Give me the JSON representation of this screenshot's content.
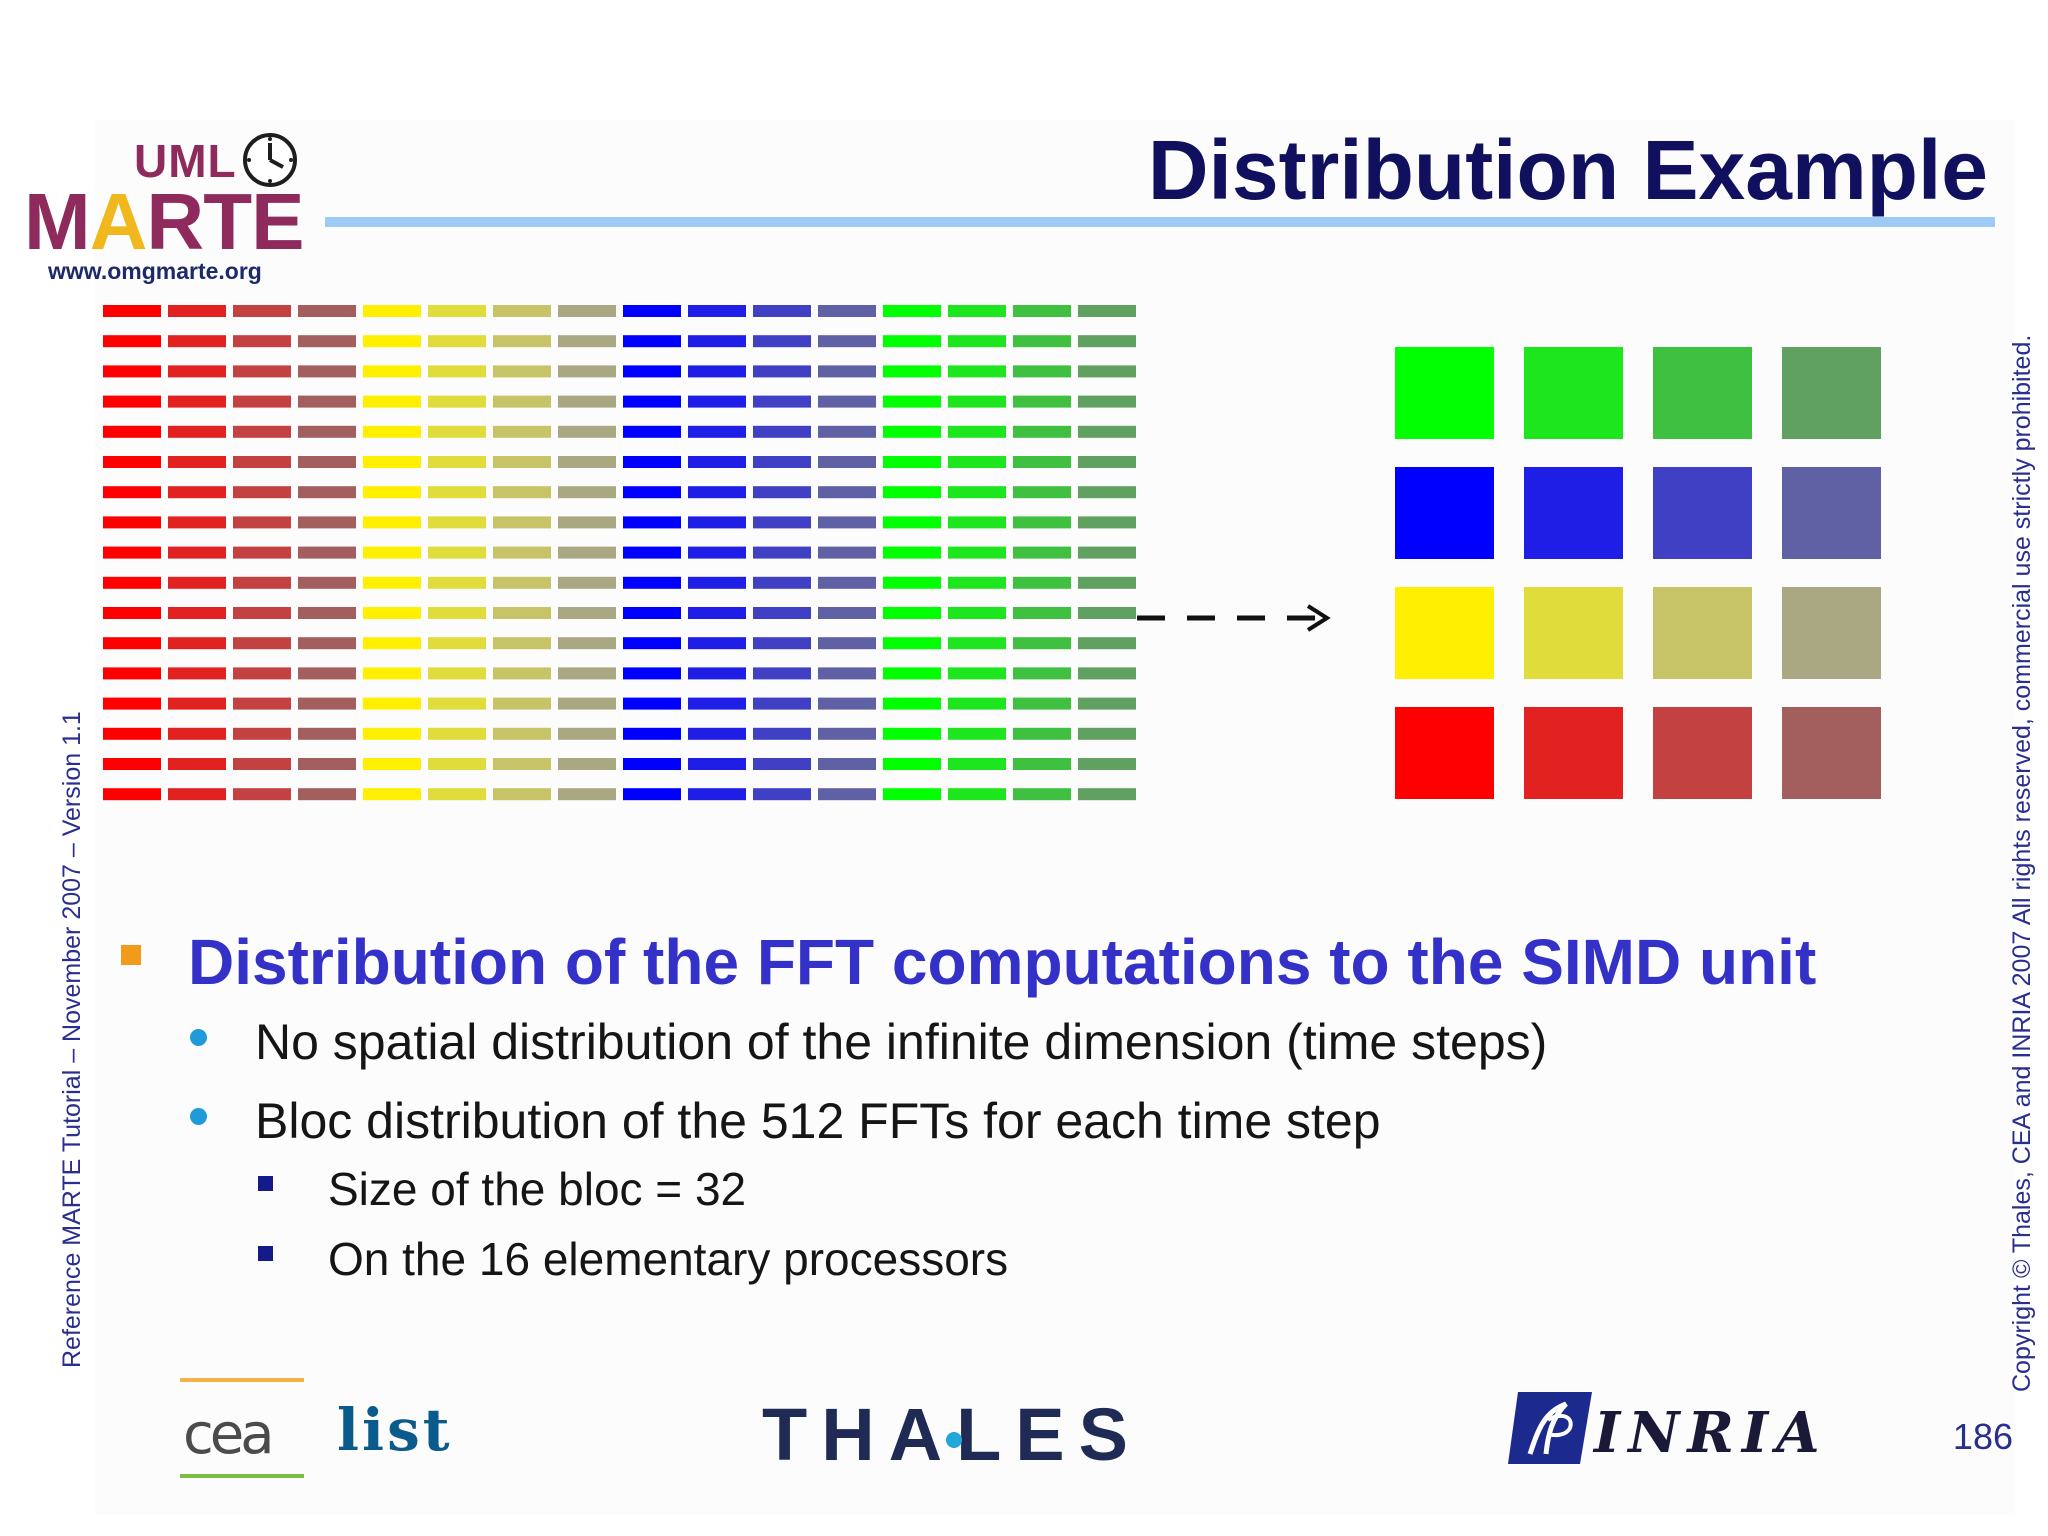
{
  "header": {
    "logo_uml": "UML",
    "logo_marte_m": "M",
    "logo_marte_a": "A",
    "logo_marte_rest": "RTE",
    "logo_url": "www.omgmarte.org",
    "title": "Distribution Example"
  },
  "figure": {
    "left_grid": {
      "rows": 17,
      "columns_per_group": 4,
      "groups": [
        {
          "name": "red",
          "colors": [
            "#ff0000",
            "#e22121",
            "#c44141",
            "#a35e5e"
          ]
        },
        {
          "name": "yellow",
          "colors": [
            "#ffef00",
            "#e0dc3b",
            "#c7c367",
            "#aaa882"
          ]
        },
        {
          "name": "blue",
          "colors": [
            "#0000ff",
            "#1e1ee6",
            "#4040c4",
            "#6060a4"
          ]
        },
        {
          "name": "green",
          "colors": [
            "#00ff00",
            "#1ee61e",
            "#40c040",
            "#60a060"
          ]
        }
      ]
    },
    "right_grid": {
      "rows": [
        {
          "name": "green",
          "colors": [
            "#00ff00",
            "#1ee61e",
            "#40c040",
            "#60a060"
          ]
        },
        {
          "name": "blue",
          "colors": [
            "#0000ff",
            "#1e1ee6",
            "#4040c4",
            "#6060a4"
          ]
        },
        {
          "name": "yellow",
          "colors": [
            "#ffef00",
            "#e0dc3b",
            "#c7c367",
            "#aaa882"
          ]
        },
        {
          "name": "red",
          "colors": [
            "#ff0000",
            "#e22121",
            "#c44141",
            "#a35e5e"
          ]
        }
      ]
    }
  },
  "bullets": {
    "main": "Distribution of the FFT computations to the SIMD unit",
    "sub": [
      "No spatial distribution of the infinite dimension (time steps)",
      "Bloc distribution of the 512 FFTs for each time step"
    ],
    "subsub": [
      "Size of the bloc = 32",
      "On the 16 elementary processors"
    ]
  },
  "footer": {
    "left_vertical": "Reference MARTE Tutorial – November 2007 – Version 1.1",
    "right_vertical": "Copyright © Thales, CEA and INRIA 2007 All rights reserved, commercial use strictly prohibited.",
    "cea": "cea",
    "list": "list",
    "thales": "THALES",
    "inria": "INRIA",
    "page_number": "186"
  }
}
